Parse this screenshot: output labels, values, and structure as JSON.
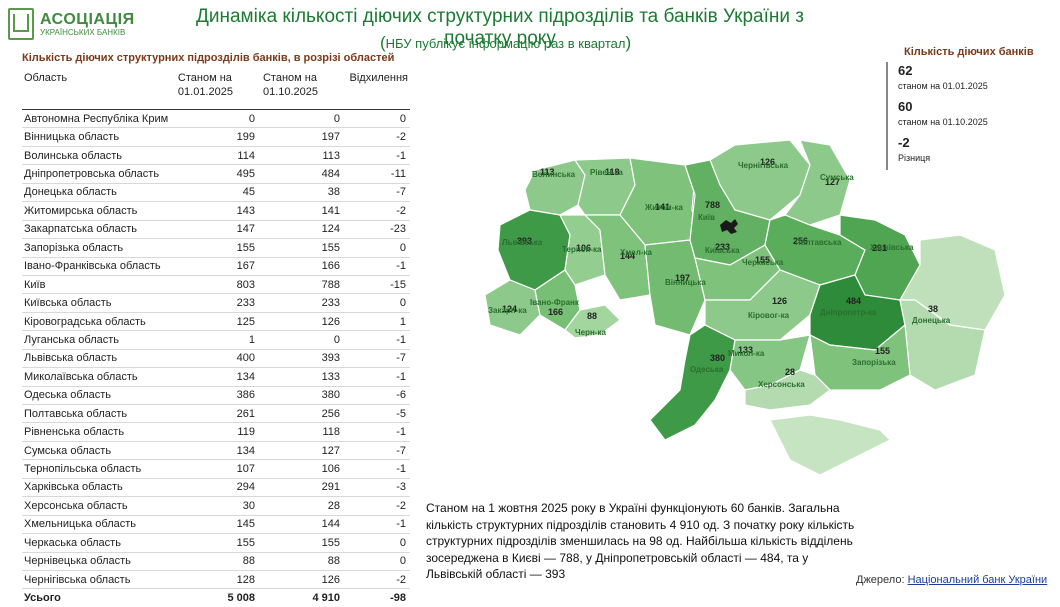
{
  "logo": {
    "line1": "АСОЦІАЦІЯ",
    "line2": "УКРАЇНСЬКИХ БАНКІВ"
  },
  "title": "Динаміка кількості діючих структурних підрозділів та  банків України з початку року",
  "subtitle": "НБУ публікує інформацію раз в квартал",
  "table": {
    "title": "Кількість діючих структурних підрозділів банків, в розрізі областей",
    "headers": {
      "region": "Область",
      "c1": "Станом на 01.01.2025",
      "c2": "Станом на 01.10.2025",
      "c3": "Відхилення"
    },
    "rows": [
      {
        "region": "Автономна Республіка Крим",
        "a": "0",
        "b": "0",
        "d": "0"
      },
      {
        "region": "Вінницька область",
        "a": "199",
        "b": "197",
        "d": "-2"
      },
      {
        "region": "Волинська область",
        "a": "114",
        "b": "113",
        "d": "-1"
      },
      {
        "region": "Дніпропетровська область",
        "a": "495",
        "b": "484",
        "d": "-11"
      },
      {
        "region": "Донецька область",
        "a": "45",
        "b": "38",
        "d": "-7"
      },
      {
        "region": "Житомирська область",
        "a": "143",
        "b": "141",
        "d": "-2"
      },
      {
        "region": "Закарпатська область",
        "a": "147",
        "b": "124",
        "d": "-23"
      },
      {
        "region": "Запорізька область",
        "a": "155",
        "b": "155",
        "d": "0"
      },
      {
        "region": "Івано-Франківська область",
        "a": "167",
        "b": "166",
        "d": "-1"
      },
      {
        "region": "Київ",
        "a": "803",
        "b": "788",
        "d": "-15"
      },
      {
        "region": "Київська область",
        "a": "233",
        "b": "233",
        "d": "0"
      },
      {
        "region": "Кіровоградська область",
        "a": "125",
        "b": "126",
        "d": "1"
      },
      {
        "region": "Луганська область",
        "a": "1",
        "b": "0",
        "d": "-1"
      },
      {
        "region": "Львівська область",
        "a": "400",
        "b": "393",
        "d": "-7"
      },
      {
        "region": "Миколаївська область",
        "a": "134",
        "b": "133",
        "d": "-1"
      },
      {
        "region": "Одеська область",
        "a": "386",
        "b": "380",
        "d": "-6"
      },
      {
        "region": "Полтавська область",
        "a": "261",
        "b": "256",
        "d": "-5"
      },
      {
        "region": "Рівненська область",
        "a": "119",
        "b": "118",
        "d": "-1"
      },
      {
        "region": "Сумська область",
        "a": "134",
        "b": "127",
        "d": "-7"
      },
      {
        "region": "Тернопільська область",
        "a": "107",
        "b": "106",
        "d": "-1"
      },
      {
        "region": "Харківська область",
        "a": "294",
        "b": "291",
        "d": "-3"
      },
      {
        "region": "Херсонська область",
        "a": "30",
        "b": "28",
        "d": "-2"
      },
      {
        "region": "Хмельницька область",
        "a": "145",
        "b": "144",
        "d": "-1"
      },
      {
        "region": "Черкаська область",
        "a": "155",
        "b": "155",
        "d": "0"
      },
      {
        "region": "Чернівецька область",
        "a": "88",
        "b": "88",
        "d": "0"
      },
      {
        "region": "Чернігівська область",
        "a": "128",
        "b": "126",
        "d": "-2"
      }
    ],
    "total": {
      "region": "Усього",
      "a": "5 008",
      "b": "4 910",
      "d": "-98"
    }
  },
  "kpi": {
    "title": "Кількість діючих банків",
    "v1": "62",
    "l1": "станом на 01.01.2025",
    "v2": "60",
    "l2": "станом на 01.10.2025",
    "v3": "-2",
    "l3": "Різниця"
  },
  "map": {
    "regions": [
      {
        "id": "volyn",
        "label": "Волинська",
        "value": "113",
        "color": "#8cc98a"
      },
      {
        "id": "rivne",
        "label": "Рівен-ка",
        "value": "118",
        "color": "#8cc98a"
      },
      {
        "id": "zhytomyr",
        "label": "Житом-ка",
        "value": "141",
        "color": "#7ec27c"
      },
      {
        "id": "kyivcity",
        "label": "Київ",
        "value": "788",
        "color": "#2f8f3c"
      },
      {
        "id": "chernihiv",
        "label": "Чернігівська",
        "value": "126",
        "color": "#8cc98a"
      },
      {
        "id": "sumy",
        "label": "Сумська",
        "value": "127",
        "color": "#8cc98a"
      },
      {
        "id": "lviv",
        "label": "Львівська",
        "value": "393",
        "color": "#3f9a47"
      },
      {
        "id": "ternopil",
        "label": "Терноп-ка",
        "value": "106",
        "color": "#93cd90"
      },
      {
        "id": "khmelnytsk",
        "label": "Хмел-ка",
        "value": "144",
        "color": "#7ec27c"
      },
      {
        "id": "vinnytsia",
        "label": "Вінницька",
        "value": "197",
        "color": "#72bb70"
      },
      {
        "id": "kyivobl",
        "label": "Київська",
        "value": "233",
        "color": "#62b162"
      },
      {
        "id": "cherkasy",
        "label": "Черкаська",
        "value": "155",
        "color": "#7ec27c"
      },
      {
        "id": "poltava",
        "label": "Полтавська",
        "value": "256",
        "color": "#5aad5b"
      },
      {
        "id": "kharkiv",
        "label": "Харківська",
        "value": "291",
        "color": "#4fa552"
      },
      {
        "id": "luhansk",
        "label": "",
        "value": "",
        "color": "#bfe0bb"
      },
      {
        "id": "zakarpattia",
        "label": "Закарп-ка",
        "value": "124",
        "color": "#8cc98a"
      },
      {
        "id": "ivanofr",
        "label": "Івано-Франк",
        "value": "166",
        "color": "#78bf76"
      },
      {
        "id": "chernivtsi",
        "label": "Черн-ка",
        "value": "88",
        "color": "#a3d59f"
      },
      {
        "id": "kirovohrad",
        "label": "Кіровог-ка",
        "value": "126",
        "color": "#8cc98a"
      },
      {
        "id": "dnipro",
        "label": "Дніпропетр-ка",
        "value": "484",
        "color": "#2e8b3a"
      },
      {
        "id": "donetsk",
        "label": "Донецька",
        "value": "38",
        "color": "#b4dbb0"
      },
      {
        "id": "odesa",
        "label": "Одеська",
        "value": "380",
        "color": "#3f9a47"
      },
      {
        "id": "mykolaiv",
        "label": "Микол-ка",
        "value": "133",
        "color": "#86c684"
      },
      {
        "id": "zaporizhzhia",
        "label": "Запорізька",
        "value": "155",
        "color": "#7ec27c"
      },
      {
        "id": "kherson",
        "label": "Херсонська",
        "value": "28",
        "color": "#b4dbb0"
      },
      {
        "id": "crimea",
        "label": "",
        "value": "",
        "color": "#c6e4c2"
      }
    ]
  },
  "summary": "Станом на 1 жовтня 2025 року в Україні функціонують 60 банків. Загальна кількість структурних підрозділів становить 4 910 од.  З початку року кількість структурних підрозділів зменшилась на 98 од. Найбільша кількість відділень зосереджена в Києві — 788, у Дніпропетровській області — 484, та у Львівській області — 393",
  "source": {
    "prefix": "Джерело: ",
    "link": "Національний банк України"
  }
}
